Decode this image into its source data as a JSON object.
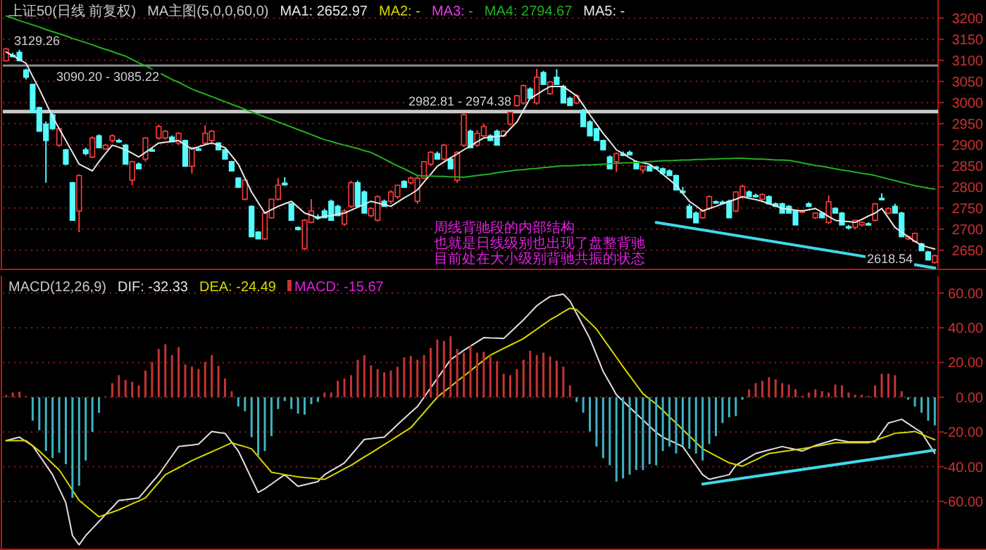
{
  "chart_data": [
    {
      "type": "candlestick",
      "title": "上证50(日线 前复权)",
      "subtitle": "MA主图(5,0,0,60,0)",
      "categories": [
        null,
        null,
        null,
        null,
        null,
        null,
        null,
        null,
        null,
        null,
        null,
        null,
        null,
        null,
        null,
        null,
        null,
        null,
        null,
        null,
        null,
        null,
        null,
        null,
        null,
        null,
        null,
        null,
        null,
        null,
        null,
        null,
        null,
        null,
        null,
        null,
        null,
        null,
        null,
        null,
        null,
        null,
        null,
        null,
        null,
        null,
        null,
        null,
        null,
        null,
        null,
        null,
        null,
        null,
        null,
        null,
        null,
        null,
        null,
        null,
        null,
        null,
        null,
        null,
        null,
        null,
        null,
        null,
        null,
        null,
        null,
        null,
        null,
        null,
        null,
        null,
        null,
        null,
        null,
        null,
        null,
        null,
        null,
        null,
        null,
        null,
        null,
        null,
        null,
        null,
        null,
        null,
        null,
        null,
        null,
        null,
        null,
        null,
        null,
        null,
        null,
        null,
        null,
        null,
        null,
        null,
        null,
        null,
        null,
        null,
        null,
        null,
        null,
        null,
        null,
        null,
        null,
        null,
        null,
        null,
        null,
        null,
        null,
        null,
        null,
        null,
        null,
        null,
        null,
        null,
        null,
        null,
        null,
        null,
        null,
        null,
        null,
        null,
        null,
        null,
        null
      ],
      "ohlc": [
        [
          3099,
          3130,
          3097,
          3127
        ],
        [
          3112,
          3118,
          3108,
          3110
        ],
        [
          3119,
          3125,
          3099,
          3099
        ],
        [
          3077,
          3080,
          3055,
          3060
        ],
        [
          3043,
          3045,
          2977,
          2977
        ],
        [
          2988,
          2990,
          2932,
          2932
        ],
        [
          2949,
          2955,
          2810,
          2910
        ],
        [
          2971,
          2975,
          2935,
          2938
        ],
        [
          2899,
          2940,
          2895,
          2938
        ],
        [
          2888,
          2890,
          2852,
          2854
        ],
        [
          2810,
          2812,
          2721,
          2721
        ],
        [
          2743,
          2830,
          2693,
          2827
        ],
        [
          2888,
          2893,
          2875,
          2879
        ],
        [
          2871,
          2920,
          2868,
          2916
        ],
        [
          2921,
          2925,
          2893,
          2893
        ],
        [
          2890,
          2902,
          2888,
          2899
        ],
        [
          2910,
          2925,
          2905,
          2921
        ],
        [
          2910,
          2914,
          2905,
          2908
        ],
        [
          2899,
          2902,
          2854,
          2854
        ],
        [
          2816,
          2862,
          2804,
          2860
        ],
        [
          2854,
          2858,
          2843,
          2843
        ],
        [
          2866,
          2918,
          2860,
          2916
        ],
        [
          2888,
          2893,
          2884,
          2886
        ],
        [
          2916,
          2948,
          2912,
          2943
        ],
        [
          2916,
          2935,
          2912,
          2932
        ],
        [
          2918,
          2922,
          2907,
          2907
        ],
        [
          2904,
          2930,
          2900,
          2927
        ],
        [
          2910,
          2912,
          2849,
          2849
        ],
        [
          2849,
          2895,
          2832,
          2893
        ],
        [
          2890,
          2893,
          2886,
          2888
        ],
        [
          2904,
          2946,
          2900,
          2927
        ],
        [
          2910,
          2935,
          2905,
          2932
        ],
        [
          2904,
          2906,
          2888,
          2888
        ],
        [
          2888,
          2890,
          2866,
          2866
        ],
        [
          2860,
          2862,
          2838,
          2838
        ],
        [
          2821,
          2823,
          2799,
          2799
        ],
        [
          2771,
          2818,
          2768,
          2816
        ],
        [
          2754,
          2756,
          2682,
          2682
        ],
        [
          2693,
          2695,
          2677,
          2677
        ],
        [
          2677,
          2740,
          2674,
          2738
        ],
        [
          2727,
          2771,
          2725,
          2771
        ],
        [
          2771,
          2821,
          2768,
          2804
        ],
        [
          2809,
          2823,
          2803,
          2805
        ],
        [
          2760,
          2762,
          2721,
          2721
        ],
        [
          2704,
          2706,
          2697,
          2699
        ],
        [
          2654,
          2724,
          2650,
          2721
        ],
        [
          2716,
          2771,
          2714,
          2743
        ],
        [
          2729,
          2735,
          2722,
          2727
        ],
        [
          2743,
          2748,
          2727,
          2727
        ],
        [
          2766,
          2770,
          2721,
          2721
        ],
        [
          2754,
          2758,
          2732,
          2732
        ],
        [
          2712,
          2748,
          2708,
          2743
        ],
        [
          2754,
          2815,
          2750,
          2810
        ],
        [
          2810,
          2815,
          2754,
          2754
        ],
        [
          2788,
          2792,
          2738,
          2738
        ],
        [
          2732,
          2752,
          2728,
          2749
        ],
        [
          2721,
          2780,
          2718,
          2777
        ],
        [
          2766,
          2770,
          2754,
          2754
        ],
        [
          2766,
          2792,
          2760,
          2788
        ],
        [
          2777,
          2805,
          2772,
          2804
        ],
        [
          2813,
          2816,
          2799,
          2799
        ],
        [
          2810,
          2825,
          2806,
          2821
        ],
        [
          2766,
          2825,
          2760,
          2821
        ],
        [
          2821,
          2860,
          2818,
          2860
        ],
        [
          2854,
          2885,
          2850,
          2882
        ],
        [
          2879,
          2884,
          2866,
          2866
        ],
        [
          2866,
          2902,
          2862,
          2899
        ],
        [
          2866,
          2870,
          2843,
          2843
        ],
        [
          2816,
          2885,
          2810,
          2882
        ],
        [
          2899,
          2975,
          2895,
          2971
        ],
        [
          2932,
          2936,
          2893,
          2893
        ],
        [
          2899,
          2935,
          2895,
          2927
        ],
        [
          2921,
          2950,
          2918,
          2943
        ],
        [
          2921,
          2925,
          2910,
          2910
        ],
        [
          2932,
          2936,
          2899,
          2899
        ],
        [
          2921,
          2935,
          2918,
          2932
        ],
        [
          2949,
          2978,
          2945,
          2977
        ],
        [
          2993,
          3018,
          2990,
          3016
        ],
        [
          2999,
          3043,
          2995,
          3040
        ],
        [
          3032,
          3036,
          3010,
          3010
        ],
        [
          2999,
          3080,
          2995,
          3060
        ],
        [
          3071,
          3075,
          3043,
          3043
        ],
        [
          3021,
          3050,
          3018,
          3049
        ],
        [
          3060,
          3079,
          3043,
          3043
        ],
        [
          3038,
          3042,
          2999,
          2999
        ],
        [
          3010,
          3014,
          2993,
          2993
        ],
        [
          2999,
          3020,
          2996,
          3016
        ],
        [
          2982,
          2985,
          2943,
          2943
        ],
        [
          2954,
          2958,
          2921,
          2921
        ],
        [
          2938,
          2940,
          2910,
          2910
        ],
        [
          2910,
          2912,
          2888,
          2888
        ],
        [
          2871,
          2875,
          2843,
          2843
        ],
        [
          2860,
          2882,
          2835,
          2879
        ],
        [
          2878,
          2884,
          2873,
          2876
        ],
        [
          2882,
          2886,
          2876,
          2876
        ],
        [
          2860,
          2863,
          2843,
          2843
        ],
        [
          2840,
          2850,
          2832,
          2849
        ],
        [
          2849,
          2852,
          2838,
          2838
        ],
        [
          2847,
          2850,
          2843,
          2845
        ],
        [
          2843,
          2846,
          2832,
          2832
        ],
        [
          2838,
          2842,
          2827,
          2827
        ],
        [
          2827,
          2829,
          2793,
          2793
        ],
        [
          2790,
          2800,
          2785,
          2788
        ],
        [
          2754,
          2760,
          2727,
          2727
        ],
        [
          2738,
          2742,
          2715,
          2715
        ],
        [
          2727,
          2746,
          2724,
          2743
        ],
        [
          2749,
          2780,
          2745,
          2777
        ],
        [
          2765,
          2768,
          2760,
          2762
        ],
        [
          2764,
          2768,
          2759,
          2763
        ],
        [
          2766,
          2770,
          2727,
          2727
        ],
        [
          2743,
          2790,
          2740,
          2788
        ],
        [
          2777,
          2805,
          2772,
          2801
        ],
        [
          2788,
          2792,
          2777,
          2777
        ],
        [
          2780,
          2784,
          2775,
          2779
        ],
        [
          2771,
          2785,
          2768,
          2782
        ],
        [
          2777,
          2780,
          2760,
          2760
        ],
        [
          2760,
          2763,
          2754,
          2754
        ],
        [
          2760,
          2763,
          2738,
          2738
        ],
        [
          2754,
          2757,
          2738,
          2738
        ],
        [
          2743,
          2746,
          2710,
          2710
        ],
        [
          2740,
          2746,
          2738,
          2743
        ],
        [
          2760,
          2764,
          2754,
          2754
        ],
        [
          2727,
          2740,
          2724,
          2738
        ],
        [
          2738,
          2741,
          2727,
          2727
        ],
        [
          2716,
          2780,
          2712,
          2765
        ],
        [
          2749,
          2752,
          2738,
          2738
        ],
        [
          2738,
          2741,
          2710,
          2710
        ],
        [
          2706,
          2710,
          2700,
          2704
        ],
        [
          2704,
          2722,
          2700,
          2721
        ],
        [
          2710,
          2718,
          2706,
          2716
        ],
        [
          2713,
          2716,
          2709,
          2712
        ],
        [
          2721,
          2762,
          2718,
          2760
        ],
        [
          2773,
          2785,
          2768,
          2771
        ],
        [
          2738,
          2752,
          2735,
          2749
        ],
        [
          2754,
          2760,
          2738,
          2738
        ],
        [
          2738,
          2741,
          2682,
          2682
        ],
        [
          2677,
          2684,
          2674,
          2682
        ],
        [
          2671,
          2692,
          2668,
          2690
        ],
        [
          2665,
          2668,
          2649,
          2649
        ],
        [
          2646,
          2648,
          2627,
          2627
        ],
        [
          2621,
          2640,
          2618,
          2637
        ]
      ],
      "series": [
        {
          "name": "MA1: 2652.97",
          "type": "line",
          "color": "#e8e8e8",
          "values": [
            3120,
            3111,
            3102,
            3093,
            3062,
            3032,
            2999,
            2966,
            2938,
            2910,
            2882,
            2854,
            2846,
            2838,
            2860,
            2880,
            2899,
            2894,
            2888,
            2880,
            2871,
            2882,
            2893,
            2904,
            2906,
            2908,
            2910,
            2900,
            2890,
            2895,
            2900,
            2904,
            2899,
            2893,
            2874,
            2854,
            2821,
            2788,
            2763,
            2738,
            2746,
            2754,
            2760,
            2766,
            2752,
            2738,
            2733,
            2727,
            2730,
            2732,
            2735,
            2738,
            2745,
            2752,
            2759,
            2766,
            2762,
            2758,
            2754,
            2764,
            2774,
            2783,
            2793,
            2812,
            2830,
            2849,
            2859,
            2869,
            2878,
            2888,
            2897,
            2907,
            2916,
            2918,
            2920,
            2921,
            2938,
            2954,
            2982,
            3010,
            3019,
            3029,
            3038,
            3038,
            3038,
            3027,
            3016,
            2994,
            2971,
            2949,
            2927,
            2908,
            2888,
            2879,
            2869,
            2860,
            2857,
            2854,
            2843,
            2830,
            2817,
            2804,
            2785,
            2766,
            2755,
            2743,
            2749,
            2754,
            2760,
            2766,
            2771,
            2777,
            2773,
            2770,
            2766,
            2760,
            2755,
            2749,
            2747,
            2745,
            2743,
            2746,
            2749,
            2740,
            2730,
            2721,
            2719,
            2718,
            2716,
            2723,
            2731,
            2738,
            2749,
            2727,
            2704,
            2693,
            2682,
            2671,
            2662,
            2657,
            2653
          ]
        },
        {
          "name": "MA4: 2794.67",
          "type": "line",
          "color": "#20b020",
          "values": [
            3205,
            3200,
            3194,
            3189,
            3184,
            3179,
            3173,
            3168,
            3163,
            3158,
            3152,
            3147,
            3142,
            3137,
            3131,
            3126,
            3121,
            3115,
            3110,
            3102,
            3094,
            3087,
            3079,
            3071,
            3063,
            3055,
            3048,
            3040,
            3032,
            3026,
            3020,
            3014,
            3008,
            3002,
            2996,
            2990,
            2984,
            2978,
            2972,
            2966,
            2960,
            2954,
            2948,
            2942,
            2936,
            2930,
            2924,
            2918,
            2912,
            2908,
            2903,
            2899,
            2895,
            2891,
            2886,
            2882,
            2874,
            2866,
            2858,
            2850,
            2843,
            2835,
            2827,
            2826,
            2826,
            2825,
            2825,
            2824,
            2824,
            2823,
            2825,
            2827,
            2829,
            2831,
            2834,
            2836,
            2838,
            2840,
            2841,
            2843,
            2844,
            2846,
            2847,
            2849,
            2850,
            2850,
            2851,
            2852,
            2852,
            2853,
            2854,
            2855,
            2856,
            2857,
            2857,
            2858,
            2859,
            2860,
            2861,
            2862,
            2862,
            2863,
            2864,
            2864,
            2865,
            2865,
            2866,
            2866,
            2867,
            2867,
            2868,
            2868,
            2867,
            2866,
            2866,
            2865,
            2864,
            2864,
            2863,
            2860,
            2857,
            2854,
            2851,
            2849,
            2846,
            2843,
            2840,
            2838,
            2835,
            2832,
            2830,
            2827,
            2823,
            2819,
            2815,
            2811,
            2807,
            2803,
            2800,
            2797,
            2794.67
          ]
        },
        {
          "type": "line",
          "color": "#40d8e8",
          "values": [
            null,
            null,
            null,
            null,
            null,
            null,
            null,
            null,
            null,
            null,
            null,
            null,
            null,
            null,
            null,
            null,
            null,
            null,
            null,
            null,
            null,
            null,
            null,
            null,
            null,
            null,
            null,
            null,
            null,
            null,
            null,
            null,
            null,
            null,
            null,
            null,
            null,
            null,
            null,
            null,
            null,
            null,
            null,
            null,
            null,
            null,
            null,
            null,
            null,
            null,
            null,
            null,
            null,
            null,
            null,
            null,
            null,
            null,
            null,
            null,
            null,
            null,
            null,
            null,
            null,
            null,
            null,
            null,
            null,
            null,
            null,
            null,
            null,
            null,
            null,
            null,
            null,
            null,
            null,
            null,
            null,
            null,
            null,
            null,
            null,
            null,
            null,
            null,
            null,
            null,
            null,
            null,
            null,
            null,
            null,
            null,
            null,
            null,
            2716,
            null,
            null,
            null,
            null,
            null,
            null,
            null,
            null,
            null,
            null,
            null,
            null,
            null,
            null,
            null,
            null,
            null,
            null,
            null,
            null,
            null,
            null,
            null,
            null,
            null,
            null,
            null,
            null,
            null,
            null,
            null,
            null,
            null,
            null,
            null,
            null,
            null,
            null,
            null,
            null,
            null,
            2608
          ]
        }
      ],
      "ylim": [
        2603,
        3243
      ],
      "yticks": [
        2650,
        2700,
        2750,
        2800,
        2850,
        2900,
        2950,
        3000,
        3050,
        3100,
        3150,
        3200
      ],
      "grid": "y",
      "legend": "top left",
      "tick_labels": "y",
      "bands": [
        {
          "axis": "y",
          "from": 3085.22,
          "to": 3090.2,
          "label": "3090.20 - 3085.22",
          "color": "#8c8c8c"
        },
        {
          "axis": "y",
          "from": 2974.38,
          "to": 2982.81,
          "label": "2982.81 - 2974.38",
          "color": "#c8c8c8"
        }
      ],
      "annotations": [
        "MA2: -",
        "MA3: -",
        "MA5: -",
        "周线背驰段的内部结构",
        "也就是日线级别也出现了盘整背驰",
        "目前处在大小级别背驰共振的状态",
        "3129.26",
        "2618.54"
      ]
    },
    {
      "type": "bar",
      "title": "MACD(12,26,9)",
      "categories": [
        null,
        null,
        null,
        null,
        null,
        null,
        null,
        null,
        null,
        null,
        null,
        null,
        null,
        null,
        null,
        null,
        null,
        null,
        null,
        null,
        null,
        null,
        null,
        null,
        null,
        null,
        null,
        null,
        null,
        null,
        null,
        null,
        null,
        null,
        null,
        null,
        null,
        null,
        null,
        null,
        null,
        null,
        null,
        null,
        null,
        null,
        null,
        null,
        null,
        null,
        null,
        null,
        null,
        null,
        null,
        null,
        null,
        null,
        null,
        null,
        null,
        null,
        null,
        null,
        null,
        null,
        null,
        null,
        null,
        null,
        null,
        null,
        null,
        null,
        null,
        null,
        null,
        null,
        null,
        null,
        null,
        null,
        null,
        null,
        null,
        null,
        null,
        null,
        null,
        null,
        null,
        null,
        null,
        null,
        null,
        null,
        null,
        null,
        null,
        null,
        null,
        null,
        null,
        null,
        null,
        null,
        null,
        null,
        null,
        null,
        null,
        null,
        null,
        null,
        null,
        null,
        null,
        null,
        null,
        null,
        null,
        null,
        null,
        null,
        null,
        null,
        null,
        null,
        null,
        null,
        null,
        null,
        null,
        null,
        null,
        null,
        null,
        null,
        null,
        null,
        null
      ],
      "series": [
        {
          "name": "DIF: -32.33",
          "type": "line",
          "color": "#e0e0e0",
          "values": [
            -25,
            -24,
            -23,
            -25.5,
            -28,
            -33.5,
            -39,
            -44.6,
            -52.7,
            -60.8,
            -79.7,
            -85,
            -79.7,
            -75.6,
            -71.6,
            -67.5,
            -63.5,
            -59.4,
            -59,
            -58.5,
            -58,
            -53.5,
            -49,
            -44.6,
            -39.2,
            -33.8,
            -28.4,
            -27.9,
            -27.5,
            -27,
            -23.4,
            -19.7,
            -20.3,
            -20.8,
            -25.9,
            -31,
            -38.9,
            -46.9,
            -54.8,
            -52.7,
            -50,
            -47.3,
            -44.6,
            -48,
            -51.3,
            -50.4,
            -49.5,
            -48.6,
            -44.6,
            -42.3,
            -40.1,
            -37.8,
            -33.3,
            -28.8,
            -24.3,
            -23.9,
            -23.4,
            -23,
            -19.4,
            -15.8,
            -12.2,
            -8.8,
            -5.4,
            0,
            5.4,
            10.8,
            16.2,
            21.6,
            24.3,
            27,
            29.4,
            31.9,
            34.3,
            34.1,
            34,
            33.8,
            37.4,
            41,
            44.6,
            48.7,
            52.7,
            55.4,
            58,
            58.7,
            59.4,
            55.4,
            48.2,
            41,
            33.8,
            24.4,
            14.9,
            8.2,
            1.4,
            -2.2,
            -5.9,
            -9.5,
            -13.1,
            -16.7,
            -20.3,
            -23,
            -24.8,
            -26.6,
            -28.4,
            -33.8,
            -39.2,
            -44.6,
            -47.3,
            -46.4,
            -45.5,
            -44.6,
            -39.2,
            -36.9,
            -34.7,
            -32.4,
            -31.4,
            -30.4,
            -29.4,
            -28.4,
            -29.3,
            -30.1,
            -31,
            -29.4,
            -27.8,
            -26.6,
            -25.5,
            -24.3,
            -25,
            -25.7,
            -25.7,
            -25.7,
            -25.7,
            -25.7,
            -20.3,
            -14.9,
            -13.8,
            -12.7,
            -15.2,
            -17.8,
            -20.3,
            -26.3,
            -32.33
          ]
        },
        {
          "name": "DEA: -24.49",
          "type": "line",
          "color": "#d8d800",
          "values": [
            -25,
            -25,
            -25,
            -25,
            -28,
            -31,
            -34.6,
            -38.3,
            -41.9,
            -47.7,
            -53.6,
            -59.4,
            -62.6,
            -65.7,
            -68.9,
            -67.5,
            -66.2,
            -64.8,
            -63.1,
            -61.4,
            -59.7,
            -58,
            -53.5,
            -49.1,
            -44.6,
            -42.6,
            -40.6,
            -38.5,
            -36.5,
            -34.8,
            -33.1,
            -31.4,
            -29.7,
            -28,
            -26.2,
            -27.4,
            -28.5,
            -29.7,
            -34.2,
            -38.7,
            -43.2,
            -43.9,
            -44.6,
            -45.2,
            -45.9,
            -46.3,
            -46.6,
            -47,
            -47.3,
            -45.3,
            -43.3,
            -41.2,
            -39.2,
            -36.8,
            -34.4,
            -32.1,
            -29.7,
            -27.3,
            -24.9,
            -22.4,
            -20,
            -17.6,
            -13.2,
            -8.8,
            -4.4,
            0,
            3.1,
            6.1,
            9.2,
            12.2,
            15.2,
            18.3,
            21.3,
            24.3,
            26.2,
            28.1,
            30,
            31.9,
            33.8,
            36.5,
            39.2,
            41.9,
            44.6,
            46.8,
            49.1,
            51.3,
            50.5,
            46.7,
            43,
            39.2,
            33.8,
            28.4,
            23,
            17.6,
            12.4,
            7.2,
            2,
            -1,
            -4,
            -7.6,
            -11.3,
            -14.9,
            -18.6,
            -22.3,
            -26,
            -29.7,
            -31.7,
            -33.8,
            -35.8,
            -37.8,
            -38.8,
            -39.7,
            -37.9,
            -36.1,
            -34.2,
            -32.4,
            -31.9,
            -31.3,
            -30.8,
            -30.2,
            -29.7,
            -29,
            -28.3,
            -27.6,
            -26.9,
            -26.2,
            -26.2,
            -26.2,
            -26.2,
            -26.2,
            -26.2,
            -24.9,
            -23.5,
            -22.2,
            -20.8,
            -20.4,
            -20.1,
            -19.7,
            -21.3,
            -22.9,
            -24.49
          ]
        },
        {
          "name": "MACD: -15.67",
          "type": "bar",
          "color": "#e020e0",
          "values": [
            1.3,
            2.7,
            3.2,
            0.5,
            -13.5,
            -19,
            -31,
            -35,
            -32,
            -38.6,
            -58,
            -51,
            -36.5,
            -20,
            -9,
            0.5,
            8.1,
            12.7,
            10,
            8.9,
            6.8,
            15.4,
            20.3,
            27.8,
            30.5,
            24.3,
            28.9,
            18.9,
            17.6,
            16.2,
            20.3,
            24.3,
            18.1,
            10.8,
            3.5,
            -5.4,
            -8.1,
            -23,
            -33.8,
            -31,
            -22.4,
            -6.8,
            -2.2,
            -6.8,
            -9.5,
            -10,
            -4,
            -2.7,
            2.7,
            2.7,
            9.5,
            10.8,
            12.7,
            21.6,
            24.3,
            18.4,
            16.2,
            14.3,
            15.4,
            17.6,
            23,
            23.8,
            21.6,
            24.3,
            28.4,
            33.2,
            32.4,
            35.1,
            27.8,
            25.7,
            29.7,
            25.7,
            26.2,
            24.3,
            20.8,
            13.5,
            12.7,
            16.2,
            21.6,
            26.7,
            24.3,
            25.7,
            23.5,
            21.1,
            17.6,
            6.8,
            -2.7,
            -8.9,
            -19.7,
            -28.4,
            -35.1,
            -39.2,
            -48.6,
            -46.7,
            -44.6,
            -41.9,
            -41.9,
            -38.6,
            -39.2,
            -31,
            -28.4,
            -32.4,
            -27.8,
            -29.7,
            -32.4,
            -36.5,
            -27,
            -22.4,
            -14.9,
            -11.6,
            -10.8,
            -1.4,
            4.6,
            8.1,
            9.5,
            11.6,
            10.3,
            8.1,
            7.3,
            4.6,
            0.8,
            2.7,
            4.6,
            3.5,
            2.7,
            7.3,
            6.8,
            2.7,
            1.4,
            1.4,
            0.8,
            6.8,
            13.5,
            13.5,
            12.7,
            3.5,
            -1.4,
            -5.4,
            -8.9,
            -13.5,
            -16.2
          ],
          "colors": [
            "#c83232",
            "#c83232",
            "#c83232",
            "#c83232",
            "#3cb4c0",
            "#3cb4c0",
            "#3cb4c0",
            "#3cb4c0",
            "#3cb4c0",
            "#3cb4c0",
            "#3cb4c0",
            "#3cb4c0",
            "#3cb4c0",
            "#3cb4c0",
            "#3cb4c0",
            "#c83232",
            "#c83232",
            "#c83232",
            "#c83232",
            "#c83232",
            "#c83232",
            "#c83232",
            "#c83232",
            "#c83232",
            "#c83232",
            "#c83232",
            "#c83232",
            "#c83232",
            "#c83232",
            "#c83232",
            "#c83232",
            "#c83232",
            "#c83232",
            "#c83232",
            "#c83232",
            "#3cb4c0",
            "#3cb4c0",
            "#3cb4c0",
            "#3cb4c0",
            "#3cb4c0",
            "#3cb4c0",
            "#3cb4c0",
            "#3cb4c0",
            "#3cb4c0",
            "#3cb4c0",
            "#3cb4c0",
            "#3cb4c0",
            "#3cb4c0",
            "#c83232",
            "#c83232",
            "#c83232",
            "#c83232",
            "#c83232",
            "#c83232",
            "#c83232",
            "#c83232",
            "#c83232",
            "#c83232",
            "#c83232",
            "#c83232",
            "#c83232",
            "#c83232",
            "#c83232",
            "#c83232",
            "#c83232",
            "#c83232",
            "#c83232",
            "#c83232",
            "#c83232",
            "#c83232",
            "#c83232",
            "#c83232",
            "#c83232",
            "#c83232",
            "#c83232",
            "#c83232",
            "#c83232",
            "#c83232",
            "#c83232",
            "#c83232",
            "#c83232",
            "#c83232",
            "#c83232",
            "#c83232",
            "#c83232",
            "#c83232",
            "#3cb4c0",
            "#3cb4c0",
            "#3cb4c0",
            "#3cb4c0",
            "#3cb4c0",
            "#3cb4c0",
            "#3cb4c0",
            "#3cb4c0",
            "#3cb4c0",
            "#3cb4c0",
            "#3cb4c0",
            "#3cb4c0",
            "#3cb4c0",
            "#3cb4c0",
            "#3cb4c0",
            "#3cb4c0",
            "#3cb4c0",
            "#3cb4c0",
            "#3cb4c0",
            "#3cb4c0",
            "#3cb4c0",
            "#3cb4c0",
            "#3cb4c0",
            "#3cb4c0",
            "#3cb4c0",
            "#3cb4c0",
            "#c83232",
            "#c83232",
            "#c83232",
            "#c83232",
            "#c83232",
            "#c83232",
            "#c83232",
            "#c83232",
            "#c83232",
            "#c83232",
            "#c83232",
            "#c83232",
            "#c83232",
            "#c83232",
            "#c83232",
            "#c83232",
            "#c83232",
            "#c83232",
            "#c83232",
            "#c83232",
            "#c83232",
            "#c83232",
            "#c83232",
            "#c83232",
            "#3cb4c0",
            "#3cb4c0",
            "#3cb4c0",
            "#3cb4c0",
            "#3cb4c0"
          ]
        },
        {
          "type": "line",
          "color": "#40d8e8",
          "values": [
            null,
            null,
            null,
            null,
            null,
            null,
            null,
            null,
            null,
            null,
            null,
            null,
            null,
            null,
            null,
            null,
            null,
            null,
            null,
            null,
            null,
            null,
            null,
            null,
            null,
            null,
            null,
            null,
            null,
            null,
            null,
            null,
            null,
            null,
            null,
            null,
            null,
            null,
            null,
            null,
            null,
            null,
            null,
            null,
            null,
            null,
            null,
            null,
            null,
            null,
            null,
            null,
            null,
            null,
            null,
            null,
            null,
            null,
            null,
            null,
            null,
            null,
            null,
            null,
            null,
            null,
            null,
            null,
            null,
            null,
            null,
            null,
            null,
            null,
            null,
            null,
            null,
            null,
            null,
            null,
            null,
            null,
            null,
            null,
            null,
            null,
            null,
            null,
            null,
            null,
            null,
            null,
            null,
            null,
            null,
            null,
            null,
            null,
            null,
            null,
            null,
            null,
            null,
            null,
            null,
            -50,
            null,
            null,
            null,
            null,
            null,
            null,
            null,
            null,
            null,
            null,
            null,
            null,
            null,
            null,
            null,
            null,
            null,
            null,
            null,
            null,
            null,
            null,
            null,
            null,
            null,
            null,
            null,
            null,
            null,
            null,
            null,
            null,
            null,
            null,
            -30.5
          ]
        }
      ],
      "ylim": [
        -88,
        70
      ],
      "yticks": [
        {
          "value": -60,
          "label": "-60.00"
        },
        {
          "value": -40,
          "label": "-40.00"
        },
        {
          "value": -20,
          "label": "-20.00"
        },
        {
          "value": 0,
          "label": "0.00"
        },
        {
          "value": 20,
          "label": "20.00"
        },
        {
          "value": 40,
          "label": "40.00"
        },
        {
          "value": 60,
          "label": "60.00"
        }
      ],
      "grid": "y",
      "legend": "top left",
      "tick_labels": "y"
    }
  ]
}
